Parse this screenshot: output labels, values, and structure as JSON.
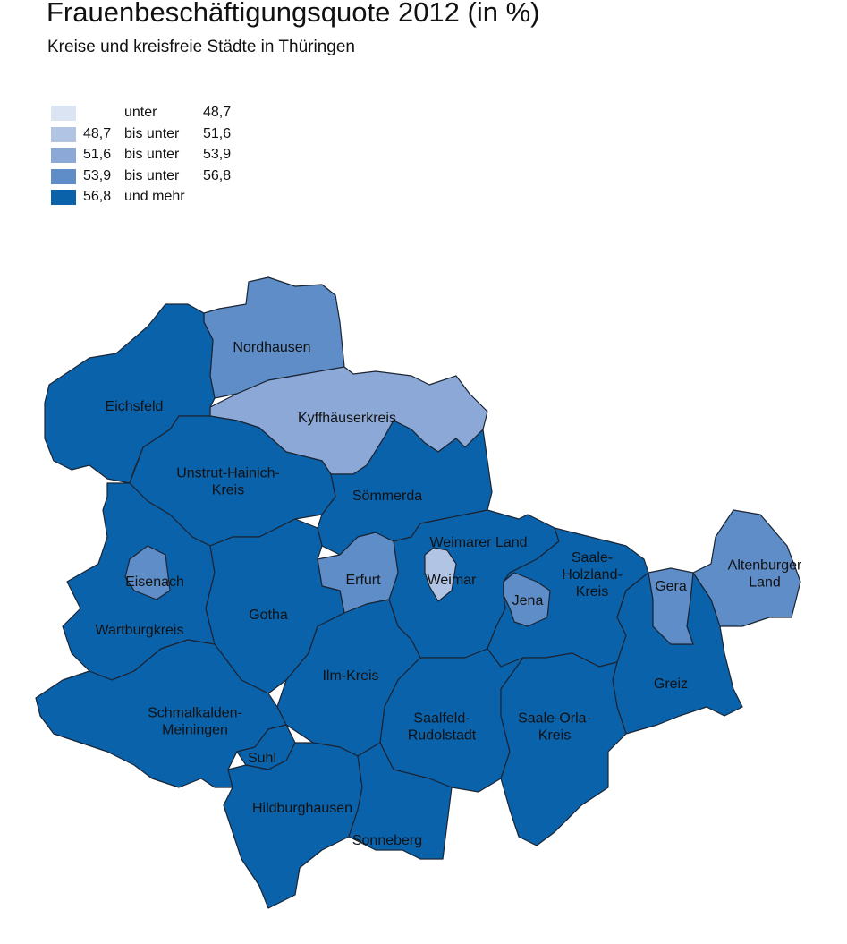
{
  "title": "Frauenbeschäftigungsquote 2012 (in %)",
  "subtitle": "Kreise und kreisfreie Städte in Thüringen",
  "legend": [
    {
      "from": "",
      "mid": "unter",
      "to": "48,7",
      "color": "#dbe4f3"
    },
    {
      "from": "48,7",
      "mid": "bis unter",
      "to": "51,6",
      "color": "#b1c4e3"
    },
    {
      "from": "51,6",
      "mid": "bis unter",
      "to": "53,9",
      "color": "#8ba8d6"
    },
    {
      "from": "53,9",
      "mid": "bis unter",
      "to": "56,8",
      "color": "#5e8dc8"
    },
    {
      "from": "56,8",
      "mid": "und mehr",
      "to": "",
      "color": "#0a62ab"
    }
  ],
  "regions": [
    {
      "id": "nordhausen",
      "label": [
        "Nordhausen"
      ],
      "class": 3
    },
    {
      "id": "kyffhaeuserkreis",
      "label": [
        "Kyffhäuserkreis"
      ],
      "class": 2
    },
    {
      "id": "eichsfeld",
      "label": [
        "Eichsfeld"
      ],
      "class": 4
    },
    {
      "id": "unstrut-hainich-kreis",
      "label": [
        "Unstrut-Hainich-",
        "Kreis"
      ],
      "class": 4
    },
    {
      "id": "soemmerda",
      "label": [
        "Sömmerda"
      ],
      "class": 4
    },
    {
      "id": "weimarer-land",
      "label": [
        "Weimarer Land"
      ],
      "class": 4
    },
    {
      "id": "erfurt",
      "label": [
        "Erfurt"
      ],
      "class": 3
    },
    {
      "id": "weimar",
      "label": [
        "Weimar"
      ],
      "class": 1
    },
    {
      "id": "saale-holzland-kreis",
      "label": [
        "Saale-",
        "Holzland-",
        "Kreis"
      ],
      "class": 4
    },
    {
      "id": "jena",
      "label": [
        "Jena"
      ],
      "class": 3
    },
    {
      "id": "greiz",
      "label": [
        "Greiz"
      ],
      "class": 4
    },
    {
      "id": "gera",
      "label": [
        "Gera"
      ],
      "class": 3
    },
    {
      "id": "altenburger-land",
      "label": [
        "Altenburger",
        "Land"
      ],
      "class": 3
    },
    {
      "id": "wartburgkreis",
      "label": [
        "Wartburgkreis"
      ],
      "class": 4
    },
    {
      "id": "eisenach",
      "label": [
        "Eisenach"
      ],
      "class": 3
    },
    {
      "id": "gotha",
      "label": [
        "Gotha"
      ],
      "class": 4
    },
    {
      "id": "ilm-kreis",
      "label": [
        "Ilm-Kreis"
      ],
      "class": 4
    },
    {
      "id": "saalfeld-rudolstadt",
      "label": [
        "Saalfeld-",
        "Rudolstadt"
      ],
      "class": 4
    },
    {
      "id": "saale-orla-kreis",
      "label": [
        "Saale-Orla-",
        "Kreis"
      ],
      "class": 4
    },
    {
      "id": "schmalkalden-meiningen",
      "label": [
        "Schmalkalden-",
        "Meiningen"
      ],
      "class": 4
    },
    {
      "id": "suhl",
      "label": [
        "Suhl"
      ],
      "class": 4
    },
    {
      "id": "hildburghausen",
      "label": [
        "Hildburghausen"
      ],
      "class": 4
    },
    {
      "id": "sonneberg",
      "label": [
        "Sonneberg"
      ],
      "class": 4
    }
  ]
}
